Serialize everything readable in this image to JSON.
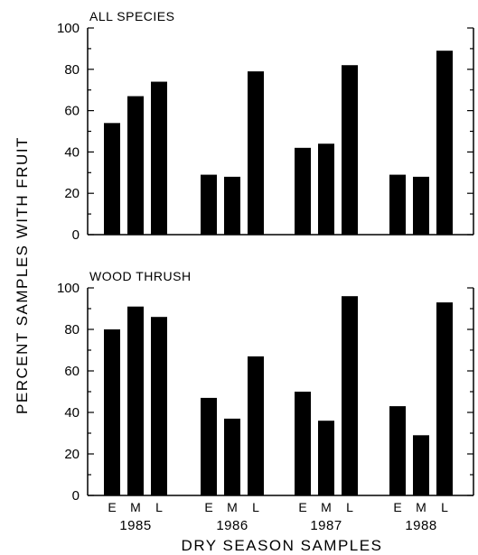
{
  "chart_data": {
    "type": "bar",
    "ylabel": "PERCENT SAMPLES WITH FRUIT",
    "xlabel": "DRY SEASON SAMPLES",
    "groups": [
      "1985",
      "1986",
      "1987",
      "1988"
    ],
    "categories": [
      "E",
      "M",
      "L"
    ],
    "panels": [
      {
        "title": "ALL SPECIES",
        "ylim": [
          0,
          100
        ],
        "yticks": [
          "0",
          "20",
          "40",
          "60",
          "80",
          "100"
        ],
        "values": [
          [
            54,
            67,
            74
          ],
          [
            29,
            28,
            79
          ],
          [
            42,
            44,
            82
          ],
          [
            29,
            28,
            89
          ]
        ]
      },
      {
        "title": "WOOD THRUSH",
        "ylim": [
          0,
          100
        ],
        "yticks": [
          "0",
          "20",
          "40",
          "60",
          "80",
          "100"
        ],
        "values": [
          [
            80,
            91,
            86
          ],
          [
            47,
            37,
            67
          ],
          [
            50,
            36,
            96
          ],
          [
            43,
            29,
            93
          ]
        ]
      }
    ],
    "bar_color": "#000000",
    "grid": false
  }
}
